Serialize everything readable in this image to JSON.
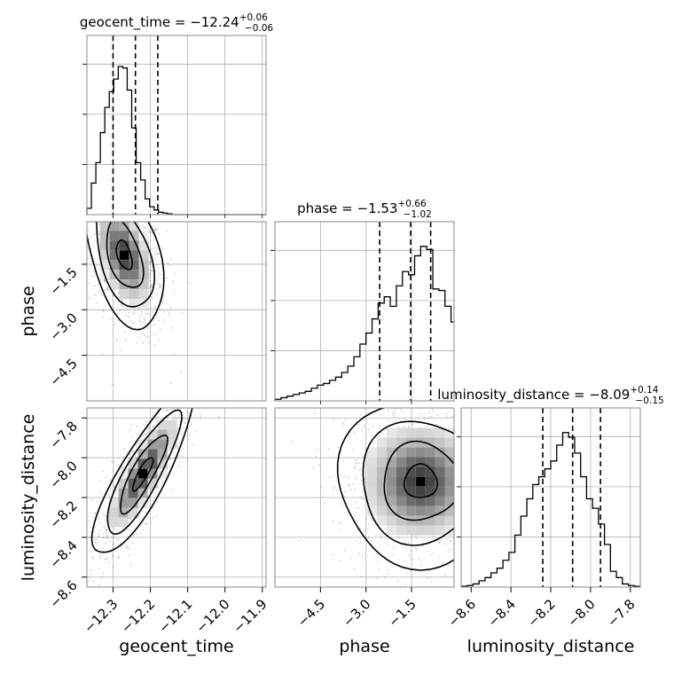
{
  "chart_data": {
    "type": "corner",
    "params": [
      {
        "name": "geocent_time",
        "range": [
          -12.37,
          -11.89
        ],
        "ticks": [
          -12.3,
          -12.2,
          -12.1,
          -12.0,
          -11.9
        ],
        "tick_labels": [
          "−12.3",
          "−12.2",
          "−12.1",
          "−12.0",
          "−11.9"
        ],
        "title_prefix": "geocent_time = −12.24",
        "title_up": "+0.06",
        "title_down": "−0.06",
        "quantiles": [
          -12.3,
          -12.24,
          -12.18
        ]
      },
      {
        "name": "phase",
        "range": [
          -6.0,
          -0.1
        ],
        "ticks": [
          -4.5,
          -3.0,
          -1.5
        ],
        "tick_labels": [
          "−4.5",
          "−3.0",
          "−1.5"
        ],
        "title_prefix": "phase = −1.53",
        "title_up": "+0.66",
        "title_down": "−1.02",
        "quantiles": [
          -2.55,
          -1.53,
          -0.87
        ]
      },
      {
        "name": "luminosity_distance",
        "range": [
          -8.65,
          -7.75
        ],
        "ticks": [
          -8.6,
          -8.4,
          -8.2,
          -8.0,
          -7.8
        ],
        "tick_labels": [
          "−8.6",
          "−8.4",
          "−8.2",
          "−8.0",
          "−7.8"
        ],
        "title_prefix": "luminosity_distance = −8.09",
        "title_up": "+0.14",
        "title_down": "−0.15",
        "quantiles": [
          -8.24,
          -8.09,
          -7.95
        ]
      }
    ],
    "histograms": [
      {
        "edges_from": -12.37,
        "bin_width": 0.012,
        "counts": [
          0.04,
          0.2,
          0.33,
          0.52,
          0.68,
          0.78,
          0.86,
          0.94,
          0.93,
          0.79,
          0.55,
          0.33,
          0.22,
          0.1,
          0.05,
          0.03,
          0.015,
          0.01,
          0.005,
          0,
          0,
          0,
          0,
          0,
          0,
          0,
          0,
          0,
          0,
          0,
          0,
          0,
          0,
          0,
          0,
          0,
          0,
          0,
          0,
          0
        ]
      },
      {
        "edges_from": -6.0,
        "bin_width": 0.2,
        "counts": [
          0.01,
          0.02,
          0.03,
          0.04,
          0.05,
          0.06,
          0.08,
          0.1,
          0.11,
          0.13,
          0.15,
          0.18,
          0.22,
          0.28,
          0.36,
          0.43,
          0.52,
          0.62,
          0.66,
          0.6,
          0.73,
          0.82,
          0.8,
          0.92,
          0.98,
          0.96,
          0.71,
          0.7,
          0.6,
          0.5
        ]
      },
      {
        "edges_from": -8.65,
        "bin_width": 0.03,
        "counts": [
          0.005,
          0.01,
          0.02,
          0.04,
          0.06,
          0.09,
          0.12,
          0.17,
          0.22,
          0.33,
          0.45,
          0.56,
          0.65,
          0.7,
          0.75,
          0.8,
          0.9,
          0.98,
          0.95,
          0.85,
          0.7,
          0.56,
          0.5,
          0.4,
          0.27,
          0.1,
          0.06,
          0.02,
          0.01,
          0.005
        ]
      }
    ],
    "scatter_x_label": "geocent_time",
    "legend": "none",
    "grid": true
  }
}
